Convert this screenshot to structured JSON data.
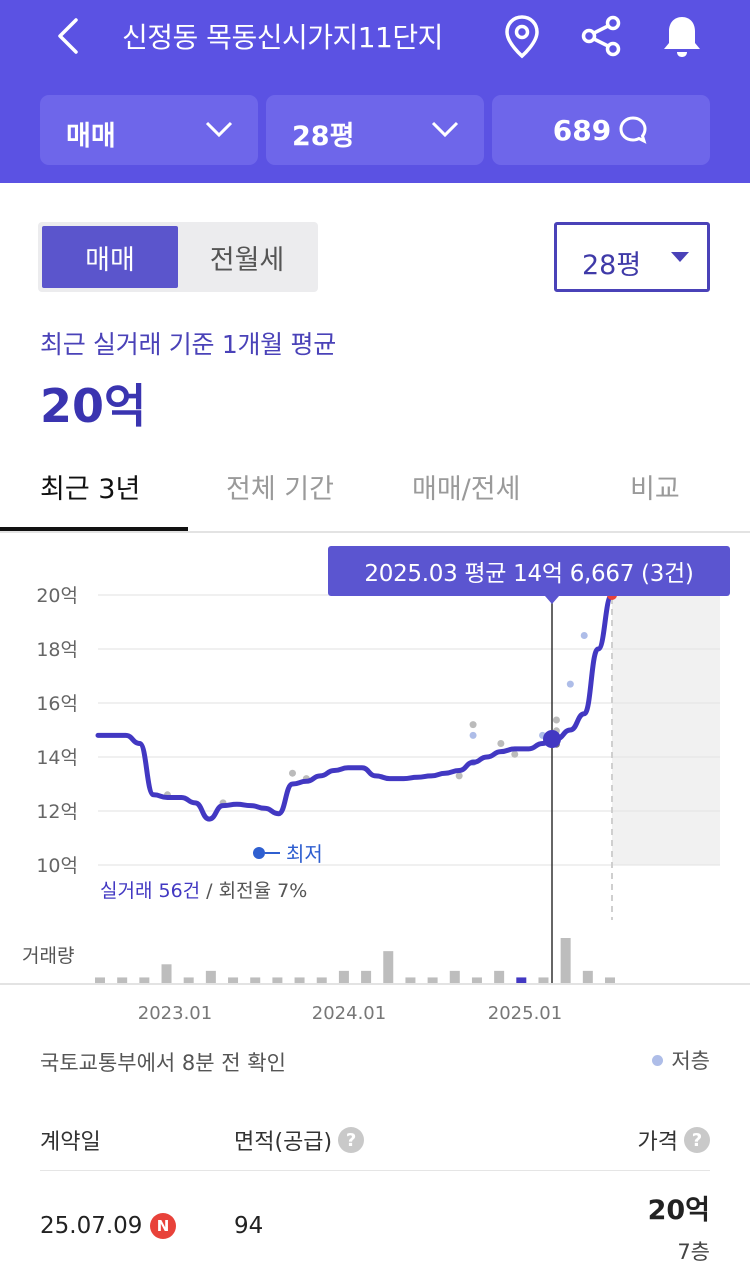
{
  "header": {
    "title": "신정동 목동신시가지11단지",
    "deal_type": "매매",
    "size": "28평",
    "comment_count": "689",
    "background_color": "#5b52e3"
  },
  "summary": {
    "segment": [
      "매매",
      "전월세"
    ],
    "size_select": "28평",
    "avg_label": "최근 실거래 기준 1개월 평균",
    "avg_value": "20억"
  },
  "tabs": [
    "최근 3년",
    "전체 기간",
    "매매/전세",
    "비교"
  ],
  "chart": {
    "tooltip": "2025.03 평균 14억 6,667 (3건)",
    "min_label": "최저",
    "trade_info": "실거래 56건",
    "turnover": " / 회전율 7%",
    "volume_label": "거래량"
  },
  "chart_data": {
    "type": "line",
    "y_tick_labels": [
      "20억",
      "18억",
      "16억",
      "14억",
      "12억",
      "10억"
    ],
    "x_tick_labels": [
      "2023.01",
      "2024.01",
      "2025.01"
    ],
    "ylim": [
      10,
      20
    ],
    "y_unit": "억",
    "series": [
      {
        "values": [
          14.8,
          14.8,
          14.8,
          14.5,
          12.6,
          12.5,
          12.5,
          12.3,
          11.7,
          12.2,
          12.25,
          12.2,
          12.1,
          11.9,
          13.0,
          13.1,
          13.3,
          13.5,
          13.6,
          13.6,
          13.3,
          13.2,
          13.2,
          13.25,
          13.3,
          13.4,
          13.5,
          13.8,
          14.0,
          14.2,
          14.3,
          14.3,
          14.5,
          14.67,
          15.0,
          15.6,
          18.0,
          20.0
        ]
      }
    ],
    "tooltip_point": {
      "x": "2025.03",
      "y": 14.6667
    },
    "volume": [
      1,
      1,
      1,
      3,
      1,
      2,
      1,
      1,
      1,
      1,
      1,
      2,
      2,
      5,
      1,
      1,
      2,
      1,
      2,
      1,
      1,
      7,
      2,
      1
    ]
  },
  "transactions": {
    "source_note": "국토교통부에서 8분 전 확인",
    "legend_low_floor": "저층",
    "columns": [
      "계약일",
      "면적(공급)",
      "가격"
    ],
    "rows": [
      {
        "date": "25.07.09",
        "badge": "N",
        "area": "94",
        "price": "20억",
        "floor": "7층"
      }
    ]
  }
}
